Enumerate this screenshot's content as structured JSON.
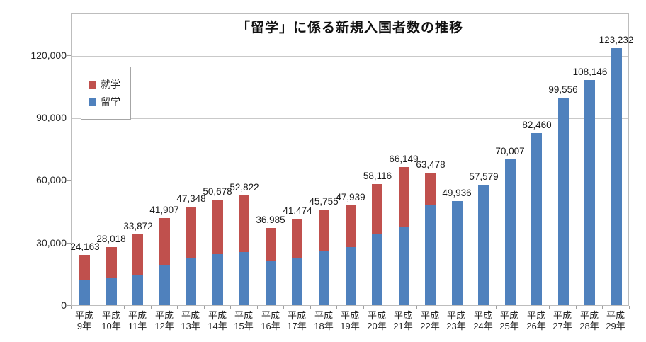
{
  "chart_data": {
    "type": "bar",
    "stacked": true,
    "title": "「留学」に係る新規入国者数の推移",
    "categories": [
      [
        "平成",
        "9年"
      ],
      [
        "平成",
        "10年"
      ],
      [
        "平成",
        "11年"
      ],
      [
        "平成",
        "12年"
      ],
      [
        "平成",
        "13年"
      ],
      [
        "平成",
        "14年"
      ],
      [
        "平成",
        "15年"
      ],
      [
        "平成",
        "16年"
      ],
      [
        "平成",
        "17年"
      ],
      [
        "平成",
        "18年"
      ],
      [
        "平成",
        "19年"
      ],
      [
        "平成",
        "20年"
      ],
      [
        "平成",
        "21年"
      ],
      [
        "平成",
        "22年"
      ],
      [
        "平成",
        "23年"
      ],
      [
        "平成",
        "24年"
      ],
      [
        "平成",
        "25年"
      ],
      [
        "平成",
        "26年"
      ],
      [
        "平成",
        "27年"
      ],
      [
        "平成",
        "28年"
      ],
      [
        "平成",
        "29年"
      ]
    ],
    "series": [
      {
        "name": "留学",
        "color": "#4F81BD",
        "values": [
          12000,
          13000,
          14100,
          19500,
          22900,
          24400,
          25500,
          21300,
          22700,
          26100,
          28000,
          33900,
          37600,
          48100,
          49936,
          57579,
          70007,
          82460,
          99556,
          108146,
          123232
        ],
        "estimated_from_pixels": true
      },
      {
        "name": "就学",
        "color": "#C0504D",
        "values": [
          12163,
          15018,
          19772,
          22407,
          24448,
          26278,
          27322,
          15685,
          18774,
          19655,
          19939,
          24216,
          28549,
          15378,
          0,
          0,
          0,
          0,
          0,
          0,
          0
        ],
        "estimated_from_pixels": true
      }
    ],
    "totals": [
      24163,
      28018,
      33872,
      41907,
      47348,
      50678,
      52822,
      36985,
      41474,
      45755,
      47939,
      58116,
      66149,
      63478,
      49936,
      57579,
      70007,
      82460,
      99556,
      108146,
      123232
    ],
    "total_labels": [
      "24,163",
      "28,018",
      "33,872",
      "41,907",
      "47,348",
      "50,678",
      "52,822",
      "36,985",
      "41,474",
      "45,755",
      "47,939",
      "58,116",
      "66,149",
      "63,478",
      "49,936",
      "57,579",
      "70,007",
      "82,460",
      "99,556",
      "108,146",
      "123,232"
    ],
    "ylim": [
      0,
      120000
    ],
    "y_ticks": [
      {
        "value": 0,
        "label": "0"
      },
      {
        "value": 30000,
        "label": "30,000"
      },
      {
        "value": 60000,
        "label": "60,000"
      },
      {
        "value": 90000,
        "label": "90,000"
      },
      {
        "value": 120000,
        "label": "120,000"
      }
    ],
    "grid": true,
    "legend_position": "top-left-inside"
  },
  "legend": {
    "items": [
      {
        "label": "就学",
        "color": "#C0504D"
      },
      {
        "label": "留学",
        "color": "#4F81BD"
      }
    ]
  }
}
